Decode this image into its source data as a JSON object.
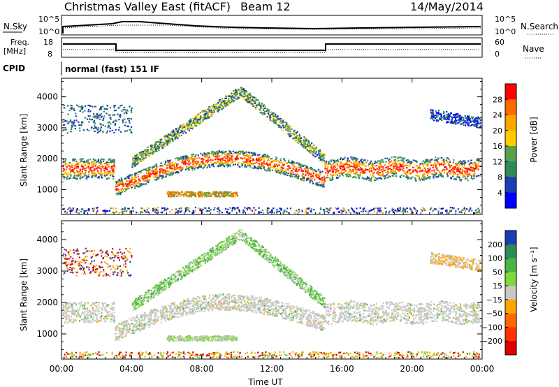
{
  "header": {
    "title": "Christmas Valley East (fitACF)",
    "beam": "Beam 12",
    "date": "14/May/2014"
  },
  "params": {
    "nsky_label": "N.Sky",
    "nsearch_label": "N.Search",
    "nsky_ticks": [
      "10^5",
      "10^0"
    ],
    "nsearch_ticks": [
      "10^5",
      "10^0"
    ],
    "freq_label_1": "Freq.",
    "freq_label_2": "[MHz]",
    "freq_ticks": [
      "18",
      "8"
    ],
    "nave_label": "Nave",
    "nave_ticks": [
      "60",
      "0"
    ],
    "cpid_label": "CPID",
    "cpid_value": "normal (fast) 151 IF"
  },
  "chart_data": [
    {
      "type": "heatmap",
      "name": "power-panel",
      "ylabel": "Slant Range [km]",
      "xlabel": "",
      "x_ticks": [
        "00:00",
        "04:00",
        "08:00",
        "12:00",
        "16:00",
        "20:00",
        "00:00"
      ],
      "y_ticks": [
        "1000",
        "2000",
        "3000",
        "4000"
      ],
      "ylim": [
        200,
        4600
      ],
      "xlim_hours": [
        0,
        24
      ],
      "colorbar_label": "Power [dB]",
      "colorbar_ticks": [
        "28",
        "24",
        "20",
        "16",
        "12",
        "8",
        "4"
      ],
      "colorbar_colors": [
        "#ff0000",
        "#ff6a00",
        "#ffa500",
        "#ffcc00",
        "#5aa04a",
        "#2e8b57",
        "#1e3cb4",
        "#0000ff"
      ]
    },
    {
      "type": "heatmap",
      "name": "velocity-panel",
      "ylabel": "Slant Range [km]",
      "xlabel": "Time UT",
      "x_ticks": [
        "00:00",
        "04:00",
        "08:00",
        "12:00",
        "16:00",
        "20:00",
        "00:00"
      ],
      "y_ticks": [
        "1000",
        "2000",
        "3000",
        "4000"
      ],
      "ylim": [
        200,
        4600
      ],
      "xlim_hours": [
        0,
        24
      ],
      "colorbar_label": "Velocity [m s⁻¹]",
      "colorbar_ticks": [
        "200",
        "100",
        "50",
        "15",
        "−15",
        "−50",
        "−100",
        "−200"
      ],
      "colorbar_colors": [
        "#1e3cb4",
        "#2e8b57",
        "#45b545",
        "#7fd93a",
        "#c8c8c8",
        "#ffa500",
        "#ff6a00",
        "#ff3300",
        "#dd0000"
      ]
    }
  ]
}
